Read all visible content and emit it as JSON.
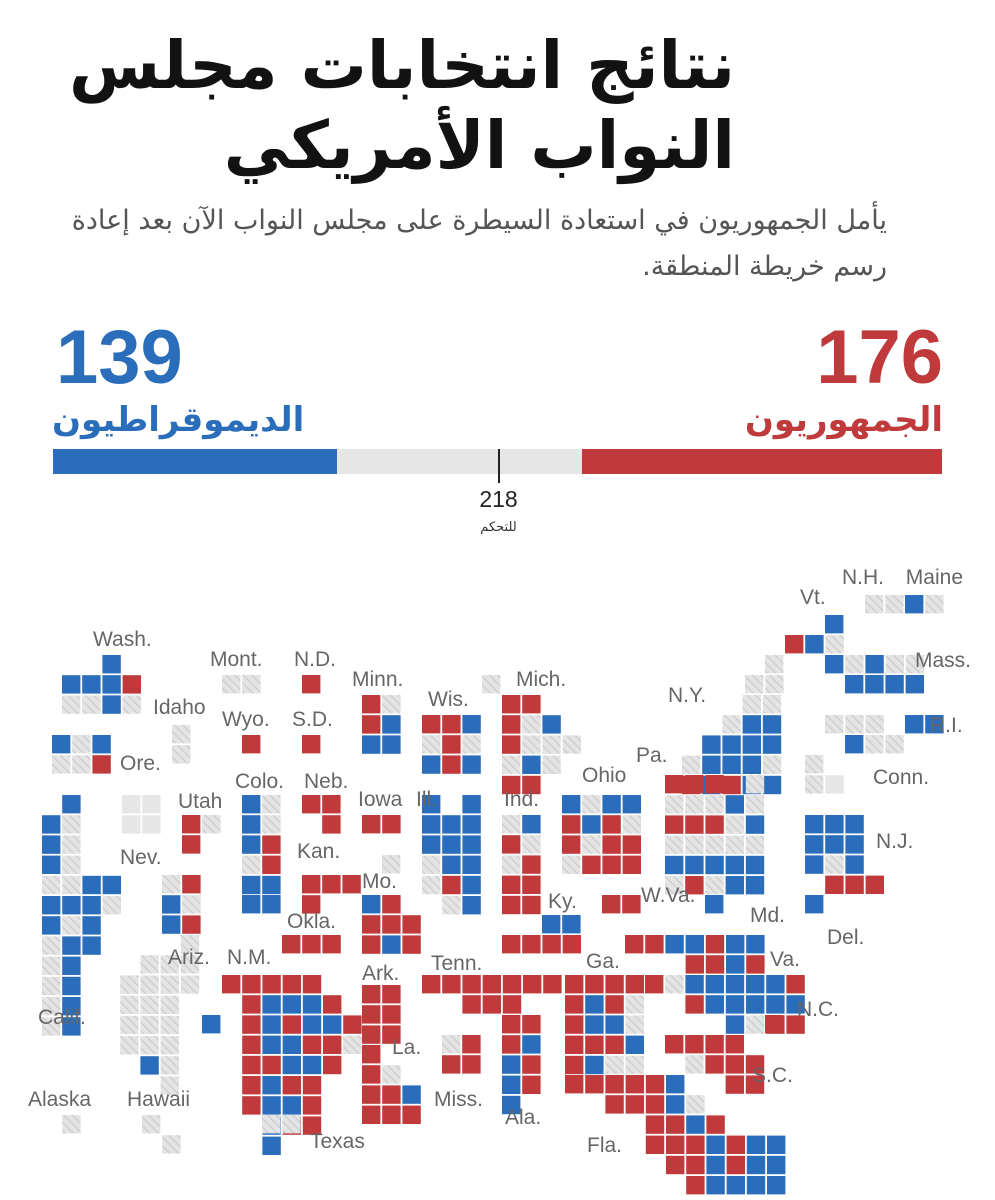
{
  "header": {
    "title": "نتائج انتخابات مجلس النواب الأمريكي",
    "subtitle": "يأمل الجمهوريون في استعادة السيطرة على مجلس النواب الآن بعد إعادة رسم خريطة المنطقة."
  },
  "colors": {
    "dem": "#2a6ebb",
    "rep": "#c0393b",
    "undecided": "#e6e6e6"
  },
  "chart_data": {
    "type": "bar",
    "categories": [
      "الديموقراطيون",
      "الجمهوريون"
    ],
    "values": [
      139,
      176
    ],
    "total": 435,
    "majority": 218,
    "majority_label": "للتحكم",
    "states": [
      {
        "label": "Maine"
      },
      {
        "label": "N.H."
      },
      {
        "label": "Vt."
      },
      {
        "label": "Mass."
      },
      {
        "label": "Wash."
      },
      {
        "label": "Mont."
      },
      {
        "label": "N.D."
      },
      {
        "label": "Minn."
      },
      {
        "label": "Mich."
      },
      {
        "label": "Idaho"
      },
      {
        "label": "Wyo."
      },
      {
        "label": "S.D."
      },
      {
        "label": "Wis."
      },
      {
        "label": "N.Y."
      },
      {
        "label": "R.I."
      },
      {
        "label": "Ore."
      },
      {
        "label": "Pa."
      },
      {
        "label": "Ohio"
      },
      {
        "label": "Conn."
      },
      {
        "label": "Colo."
      },
      {
        "label": "Neb."
      },
      {
        "label": "Utah"
      },
      {
        "label": "Iowa"
      },
      {
        "label": "Ill."
      },
      {
        "label": "Ind."
      },
      {
        "label": "N.J."
      },
      {
        "label": "Nev."
      },
      {
        "label": "Kan."
      },
      {
        "label": "Mo."
      },
      {
        "label": "Ky."
      },
      {
        "label": "W.Va."
      },
      {
        "label": "Md."
      },
      {
        "label": "Okla."
      },
      {
        "label": "Del."
      },
      {
        "label": "Ariz."
      },
      {
        "label": "N.M."
      },
      {
        "label": "Ark."
      },
      {
        "label": "Tenn."
      },
      {
        "label": "Ga."
      },
      {
        "label": "Va."
      },
      {
        "label": "N.C."
      },
      {
        "label": "Calif."
      },
      {
        "label": "La."
      },
      {
        "label": "S.C."
      },
      {
        "label": "Alaska"
      },
      {
        "label": "Hawaii"
      },
      {
        "label": "Miss."
      },
      {
        "label": "Ala."
      },
      {
        "label": "Texas"
      },
      {
        "label": "Fla."
      }
    ]
  }
}
